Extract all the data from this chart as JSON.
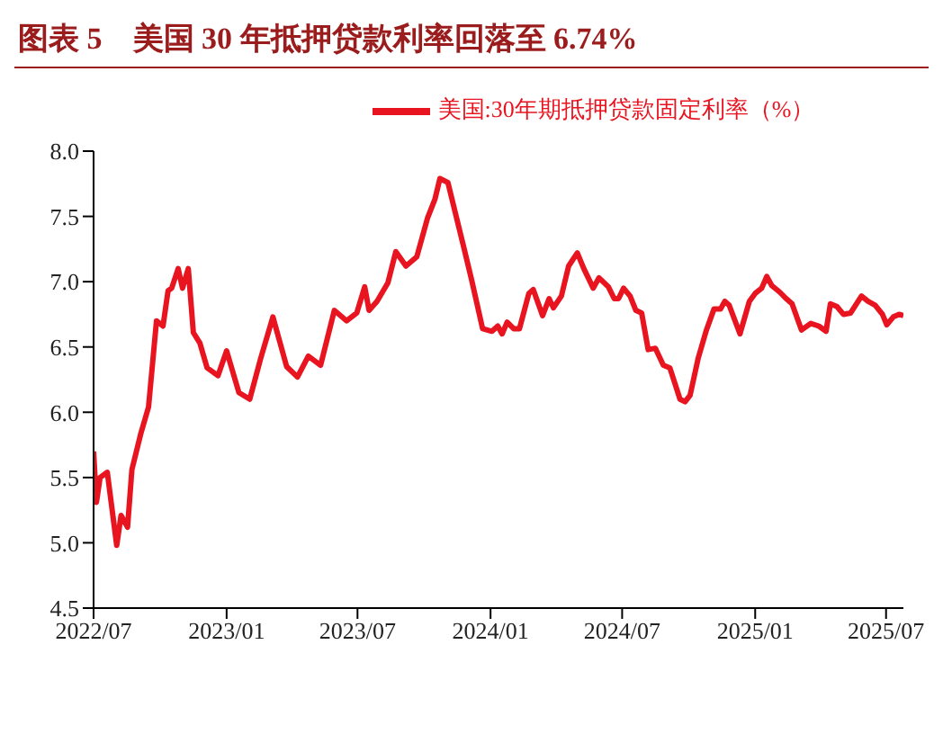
{
  "chart_data": {
    "type": "line",
    "title": "图表 5　美国 30 年抵押贷款利率回落至 6.74%",
    "x": [
      "2022-07-01",
      "2022-07-05",
      "2022-07-10",
      "2022-07-20",
      "2022-08-02",
      "2022-08-08",
      "2022-08-17",
      "2022-08-23",
      "2022-09-04",
      "2022-09-15",
      "2022-09-26",
      "2022-10-05",
      "2022-10-12",
      "2022-10-17",
      "2022-10-26",
      "2022-11-01",
      "2022-11-09",
      "2022-11-16",
      "2022-11-25",
      "2022-12-05",
      "2022-12-20",
      "2023-01-01",
      "2023-01-18",
      "2023-02-02",
      "2023-02-17",
      "2023-03-06",
      "2023-03-25",
      "2023-04-09",
      "2023-04-24",
      "2023-05-11",
      "2023-05-30",
      "2023-06-16",
      "2023-06-30",
      "2023-07-11",
      "2023-07-17",
      "2023-07-28",
      "2023-08-12",
      "2023-08-23",
      "2023-09-06",
      "2023-09-21",
      "2023-10-06",
      "2023-10-16",
      "2023-10-23",
      "2023-11-03",
      "2023-11-26",
      "2023-12-06",
      "2023-12-21",
      "2024-01-03",
      "2024-01-11",
      "2024-01-17",
      "2024-01-24",
      "2024-02-02",
      "2024-02-10",
      "2024-02-23",
      "2024-02-29",
      "2024-03-13",
      "2024-03-22",
      "2024-03-28",
      "2024-04-08",
      "2024-04-18",
      "2024-04-30",
      "2024-05-09",
      "2024-05-22",
      "2024-05-30",
      "2024-06-12",
      "2024-06-20",
      "2024-06-26",
      "2024-07-03",
      "2024-07-12",
      "2024-07-20",
      "2024-07-28",
      "2024-08-06",
      "2024-08-16",
      "2024-08-27",
      "2024-09-05",
      "2024-09-19",
      "2024-09-26",
      "2024-10-03",
      "2024-10-14",
      "2024-10-25",
      "2024-11-05",
      "2024-11-14",
      "2024-11-20",
      "2024-11-26",
      "2024-12-11",
      "2024-12-24",
      "2025-01-01",
      "2025-01-10",
      "2025-01-17",
      "2025-01-24",
      "2025-02-04",
      "2025-02-13",
      "2025-02-21",
      "2025-03-06",
      "2025-03-19",
      "2025-03-30",
      "2025-04-09",
      "2025-04-15",
      "2025-04-24",
      "2025-05-03",
      "2025-05-13",
      "2025-05-28",
      "2025-06-06",
      "2025-06-16",
      "2025-06-26",
      "2025-07-02",
      "2025-07-11",
      "2025-07-19",
      "2025-07-25"
    ],
    "series": [
      {
        "name": "美国:30年期抵押贷款固定利率（%）",
        "color": "#e8141f",
        "values": [
          5.7,
          5.31,
          5.5,
          5.54,
          4.98,
          5.21,
          5.12,
          5.56,
          5.83,
          6.04,
          6.7,
          6.66,
          6.93,
          6.95,
          7.1,
          6.95,
          7.1,
          6.61,
          6.53,
          6.34,
          6.28,
          6.47,
          6.15,
          6.1,
          6.41,
          6.73,
          6.35,
          6.27,
          6.43,
          6.36,
          6.78,
          6.7,
          6.76,
          6.96,
          6.78,
          6.85,
          6.99,
          7.23,
          7.12,
          7.19,
          7.49,
          7.63,
          7.79,
          7.76,
          7.24,
          7.01,
          6.64,
          6.62,
          6.66,
          6.6,
          6.69,
          6.64,
          6.64,
          6.91,
          6.94,
          6.74,
          6.87,
          6.8,
          6.89,
          7.12,
          7.22,
          7.1,
          6.95,
          7.03,
          6.96,
          6.87,
          6.87,
          6.95,
          6.89,
          6.78,
          6.76,
          6.48,
          6.49,
          6.36,
          6.34,
          6.1,
          6.08,
          6.13,
          6.41,
          6.62,
          6.79,
          6.79,
          6.85,
          6.82,
          6.6,
          6.85,
          6.91,
          6.95,
          7.04,
          6.97,
          6.92,
          6.87,
          6.83,
          6.63,
          6.68,
          6.66,
          6.62,
          6.83,
          6.81,
          6.75,
          6.76,
          6.89,
          6.85,
          6.82,
          6.75,
          6.67,
          6.73,
          6.75,
          6.74
        ]
      }
    ],
    "xlim": [
      "2022-07-01",
      "2025-07-25"
    ],
    "xticks": [
      {
        "value": "2022-07-01",
        "label": "2022/07"
      },
      {
        "value": "2023-01-01",
        "label": "2023/01"
      },
      {
        "value": "2023-07-01",
        "label": "2023/07"
      },
      {
        "value": "2024-01-01",
        "label": "2024/01"
      },
      {
        "value": "2024-07-01",
        "label": "2024/07"
      },
      {
        "value": "2025-01-01",
        "label": "2025/01"
      },
      {
        "value": "2025-07-01",
        "label": "2025/07"
      }
    ],
    "ylim": [
      4.5,
      8.0
    ],
    "yticks": [
      {
        "value": 4.5,
        "label": "4.5"
      },
      {
        "value": 5.0,
        "label": "5.0"
      },
      {
        "value": 5.5,
        "label": "5.5"
      },
      {
        "value": 6.0,
        "label": "6.0"
      },
      {
        "value": 6.5,
        "label": "6.5"
      },
      {
        "value": 7.0,
        "label": "7.0"
      },
      {
        "value": 7.5,
        "label": "7.5"
      },
      {
        "value": 8.0,
        "label": "8.0"
      }
    ],
    "legend": "top",
    "grid": false,
    "marker": "none",
    "line_style": "solid"
  }
}
